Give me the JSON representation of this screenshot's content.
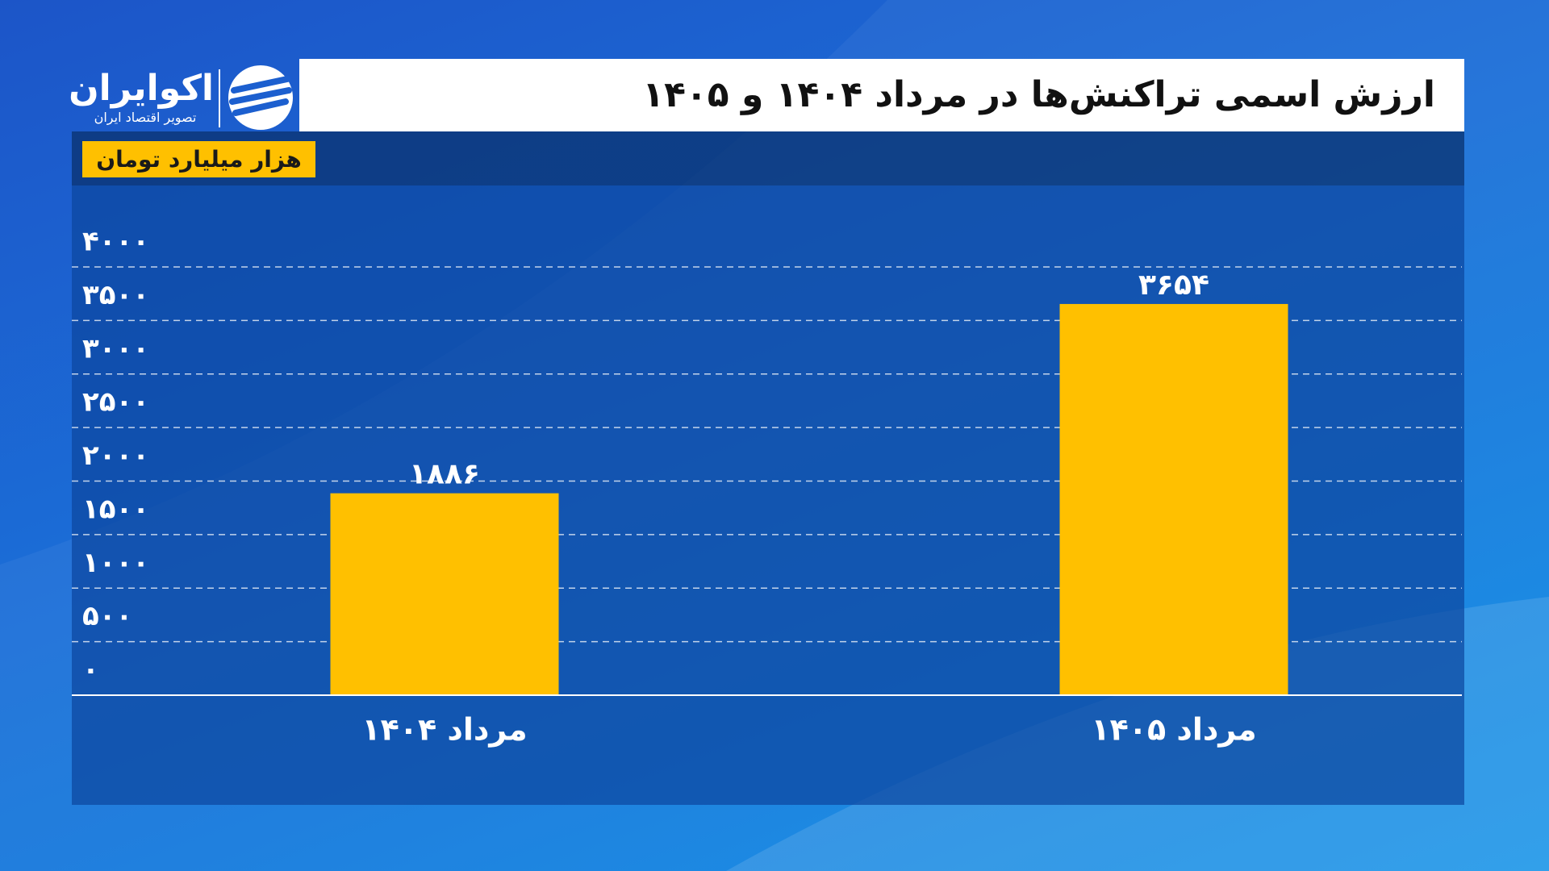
{
  "brand": {
    "name": "اکوایران",
    "tagline": "تصویر اقتصاد ایران"
  },
  "chart_data": {
    "type": "bar",
    "title": "ارزش اسمی تراکنش‌ها  در مرداد ۱۴۰۴ و ۱۴۰۵",
    "ylabel": "هزار میلیارد تومان",
    "categories": [
      "مرداد ۱۴۰۴",
      "مرداد ۱۴۰۵"
    ],
    "values": [
      1886,
      3654
    ],
    "value_labels": [
      "۱۸۸۶",
      "۳۶۵۴"
    ],
    "color": "#ffc000",
    "ylim": [
      0,
      4000
    ],
    "yticks": [
      {
        "value": 0,
        "label": "۰"
      },
      {
        "value": 500,
        "label": "۵۰۰"
      },
      {
        "value": 1000,
        "label": "۱۰۰۰"
      },
      {
        "value": 1500,
        "label": "۱۵۰۰"
      },
      {
        "value": 2000,
        "label": "۲۰۰۰"
      },
      {
        "value": 2500,
        "label": "۲۵۰۰"
      },
      {
        "value": 3000,
        "label": "۳۰۰۰"
      },
      {
        "value": 3500,
        "label": "۳۵۰۰"
      },
      {
        "value": 4000,
        "label": "۴۰۰۰"
      }
    ],
    "grid": true
  }
}
